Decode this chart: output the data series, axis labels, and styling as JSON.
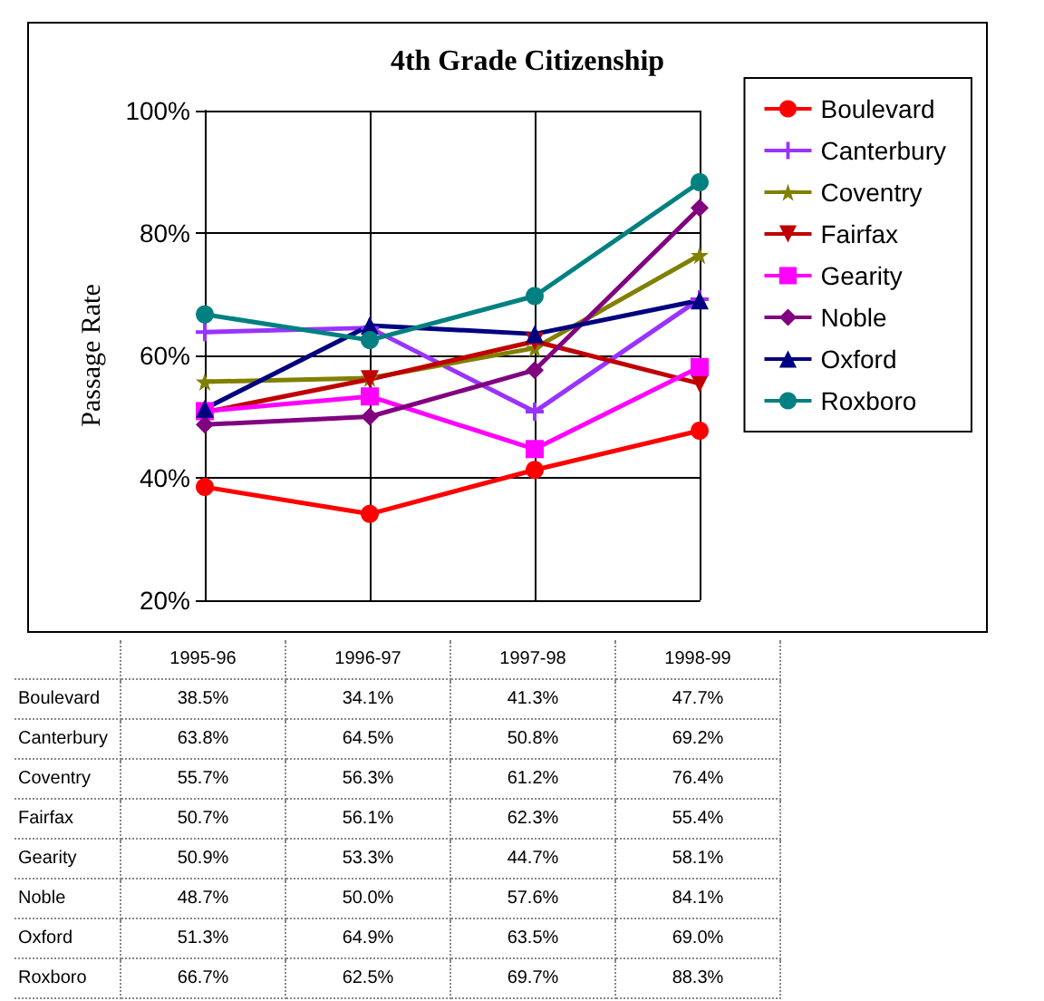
{
  "chart_data": {
    "type": "line",
    "title": "4th Grade Citizenship",
    "ylabel": "Passage Rate",
    "categories": [
      "1995-96",
      "1996-97",
      "1997-98",
      "1998-99"
    ],
    "ylim": [
      20,
      100
    ],
    "yticks": [
      {
        "value": 20,
        "label": "20%"
      },
      {
        "value": 40,
        "label": "40%"
      },
      {
        "value": 60,
        "label": "60%"
      },
      {
        "value": 80,
        "label": "80%"
      },
      {
        "value": 100,
        "label": "100%"
      }
    ],
    "grid": true,
    "legend": "right",
    "tick_labels": "y",
    "series": [
      {
        "name": "Boulevard",
        "color": "#ff0000",
        "marker": "circle",
        "values": [
          38.5,
          34.1,
          41.3,
          47.7
        ],
        "value_labels": [
          "38.5%",
          "34.1%",
          "41.3%",
          "47.7%"
        ]
      },
      {
        "name": "Canterbury",
        "color": "#9933ff",
        "marker": "cross",
        "values": [
          63.8,
          64.5,
          50.8,
          69.2
        ],
        "value_labels": [
          "63.8%",
          "64.5%",
          "50.8%",
          "69.2%"
        ]
      },
      {
        "name": "Coventry",
        "color": "#808000",
        "marker": "star",
        "values": [
          55.7,
          56.3,
          61.2,
          76.4
        ],
        "value_labels": [
          "55.7%",
          "56.3%",
          "61.2%",
          "76.4%"
        ]
      },
      {
        "name": "Fairfax",
        "color": "#c00000",
        "marker": "triangle-down",
        "values": [
          50.7,
          56.1,
          62.3,
          55.4
        ],
        "value_labels": [
          "50.7%",
          "56.1%",
          "62.3%",
          "55.4%"
        ]
      },
      {
        "name": "Gearity",
        "color": "#ff00ff",
        "marker": "square",
        "values": [
          50.9,
          53.3,
          44.7,
          58.1
        ],
        "value_labels": [
          "50.9%",
          "53.3%",
          "44.7%",
          "58.1%"
        ]
      },
      {
        "name": "Noble",
        "color": "#800080",
        "marker": "diamond",
        "values": [
          48.7,
          50.0,
          57.6,
          84.1
        ],
        "value_labels": [
          "48.7%",
          "50.0%",
          "57.6%",
          "84.1%"
        ]
      },
      {
        "name": "Oxford",
        "color": "#000080",
        "marker": "triangle",
        "values": [
          51.3,
          64.9,
          63.5,
          69.0
        ],
        "value_labels": [
          "51.3%",
          "64.9%",
          "63.5%",
          "69.0%"
        ]
      },
      {
        "name": "Roxboro",
        "color": "#008080",
        "marker": "circle",
        "values": [
          66.7,
          62.5,
          69.7,
          88.3
        ],
        "value_labels": [
          "66.7%",
          "62.5%",
          "69.7%",
          "88.3%"
        ]
      }
    ]
  }
}
